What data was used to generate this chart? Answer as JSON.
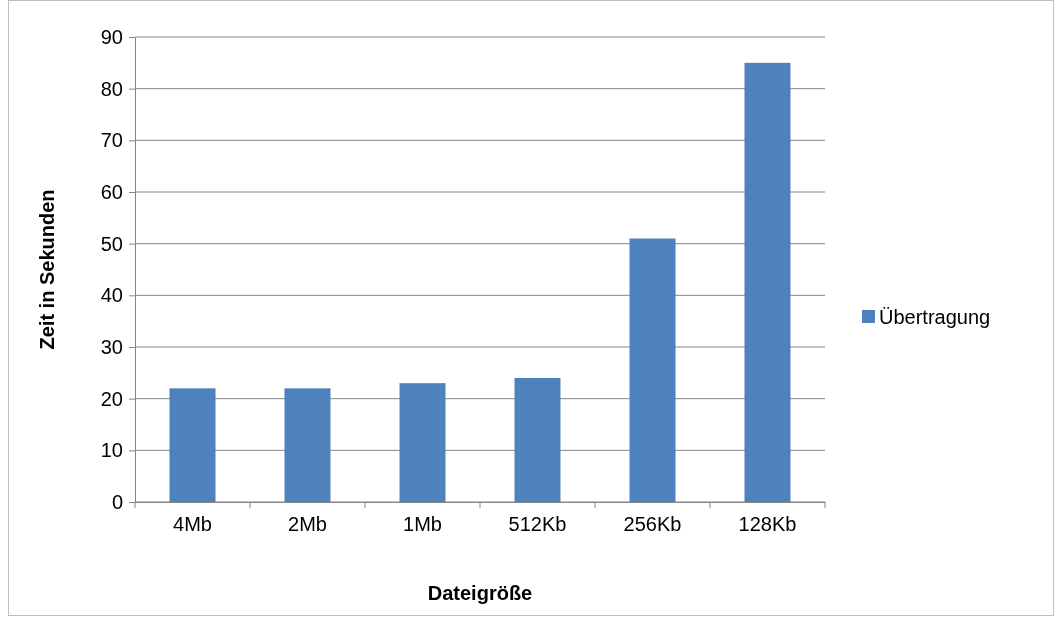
{
  "chart_data": {
    "type": "bar",
    "xlabel": "Dateigröße",
    "ylabel": "Zeit in Sekunden",
    "categories": [
      "4Mb",
      "2Mb",
      "1Mb",
      "512Kb",
      "256Kb",
      "128Kb"
    ],
    "series": [
      {
        "name": "Übertragung",
        "color": "#4f81bd",
        "values": [
          22,
          22,
          23,
          24,
          51,
          85
        ]
      }
    ],
    "ylim": [
      0,
      90
    ],
    "yticks": [
      0,
      10,
      20,
      30,
      40,
      50,
      60,
      70,
      80,
      90
    ],
    "grid": "y",
    "legend": "right"
  }
}
